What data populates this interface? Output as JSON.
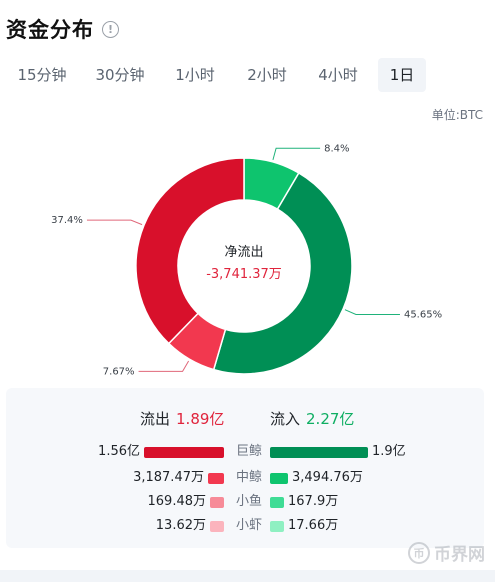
{
  "header": {
    "title": "资金分布",
    "info_icon": "info-icon"
  },
  "tabs": [
    {
      "label": "15分钟",
      "active": false
    },
    {
      "label": "30分钟",
      "active": false
    },
    {
      "label": "1小时",
      "active": false
    },
    {
      "label": "2小时",
      "active": false
    },
    {
      "label": "4小时",
      "active": false
    },
    {
      "label": "1日",
      "active": true
    }
  ],
  "unit": "单位:BTC",
  "center": {
    "label": "净流出",
    "value": "-3,741.37万"
  },
  "chart_data": {
    "type": "pie",
    "donut": true,
    "start_angle_deg": 0,
    "slices": [
      {
        "label": "8.4%",
        "value": 8.4,
        "color": "#0ec46e"
      },
      {
        "label": "45.65%",
        "value": 45.65,
        "color": "#008f55"
      },
      {
        "label": "7.67%",
        "value": 7.67,
        "color": "#f2384f"
      },
      {
        "label": "37.4%",
        "value": 37.4,
        "color": "#d8102b"
      }
    ],
    "label_color_in": "#1fb27a",
    "label_color_out": "#e0677a"
  },
  "summary": {
    "outflow_label": "流出",
    "outflow_value": "1.89亿",
    "inflow_label": "流入",
    "inflow_value": "2.27亿",
    "rows": [
      {
        "category": "巨鲸",
        "out_value": "1.56亿",
        "in_value": "1.9亿",
        "out_ratio": 1.0,
        "in_ratio": 1.0,
        "out_color": "#d8102b",
        "in_color": "#008f55"
      },
      {
        "category": "中鲸",
        "out_value": "3,187.47万",
        "in_value": "3,494.76万",
        "out_ratio": 0.2,
        "in_ratio": 0.18,
        "out_color": "#f2384f",
        "in_color": "#0ec46e"
      },
      {
        "category": "小鱼",
        "out_value": "169.48万",
        "in_value": "167.9万",
        "out_ratio": 0.1,
        "in_ratio": 0.1,
        "out_color": "#f78b98",
        "in_color": "#3fdc95"
      },
      {
        "category": "小虾",
        "out_value": "13.62万",
        "in_value": "17.66万",
        "out_ratio": 0.1,
        "in_ratio": 0.1,
        "out_color": "#fbb4bd",
        "in_color": "#8ff0c2"
      }
    ]
  },
  "watermark": {
    "text": "币界网",
    "logo": "bijie-logo-icon"
  }
}
